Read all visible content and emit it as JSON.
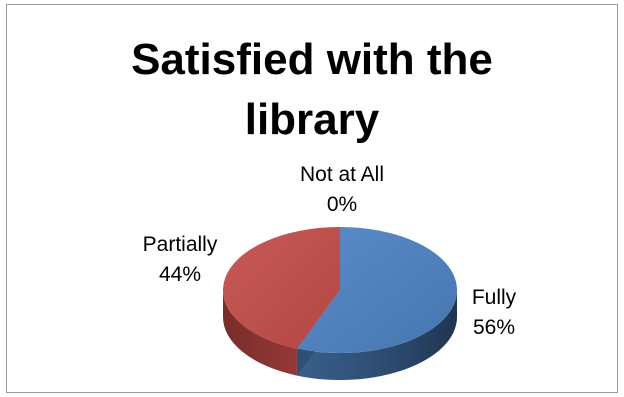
{
  "chart_data": {
    "type": "pie",
    "title_lines": [
      "Satisfied with the",
      "library"
    ],
    "categories": [
      "Fully",
      "Partially",
      "Not at All"
    ],
    "values": [
      56,
      44,
      0
    ],
    "percent_labels": [
      "56%",
      "44%",
      "0%"
    ],
    "colors": [
      "#4f81bd",
      "#c0504d",
      "#9bbb59"
    ],
    "style": "3d",
    "legend": "none"
  }
}
